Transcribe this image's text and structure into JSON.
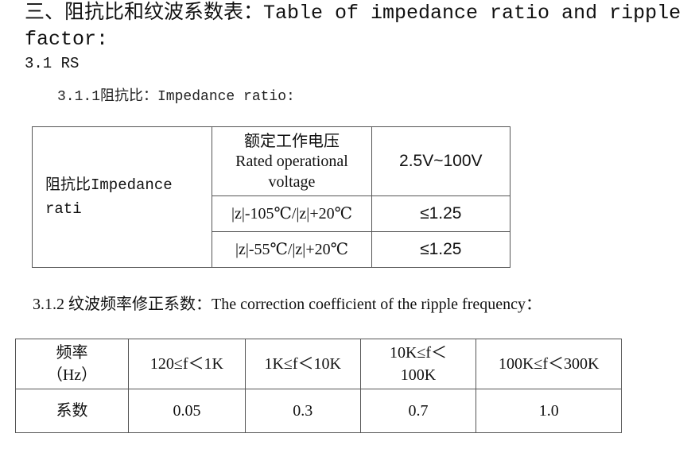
{
  "heading": {
    "title": "三、阻抗比和纹波系数表：Table of impedance ratio and ripple factor:",
    "section": "3.1 RS"
  },
  "impedance_section": {
    "title": "3.1.1阻抗比：Impedance ratio:",
    "table": {
      "row_header": "阻抗比Impedance rati",
      "col_header_zh": "额定工作电压",
      "col_header_en": "Rated operational voltage",
      "voltage_range": "2.5V~100V",
      "rows": [
        {
          "condition": "|z|-105℃/|z|+20℃",
          "value": "≤1.25"
        },
        {
          "condition": "|z|-55℃/|z|+20℃",
          "value": "≤1.25"
        }
      ]
    }
  },
  "ripple_section": {
    "title": "3.1.2 纹波频率修正系数：The correction coefficient of the ripple frequency：",
    "table": {
      "freq_label_zh": "频率",
      "freq_label_unit": "（Hz）",
      "coef_label": "系数",
      "frequencies": [
        "120≤f＜1K",
        "1K≤f＜10K",
        "10K≤f＜100K",
        "100K≤f＜300K"
      ],
      "freq_3_line1": "10K≤f＜",
      "freq_3_line2": "100K",
      "coefficients": [
        "0.05",
        "0.3",
        "0.7",
        "1.0"
      ]
    }
  }
}
